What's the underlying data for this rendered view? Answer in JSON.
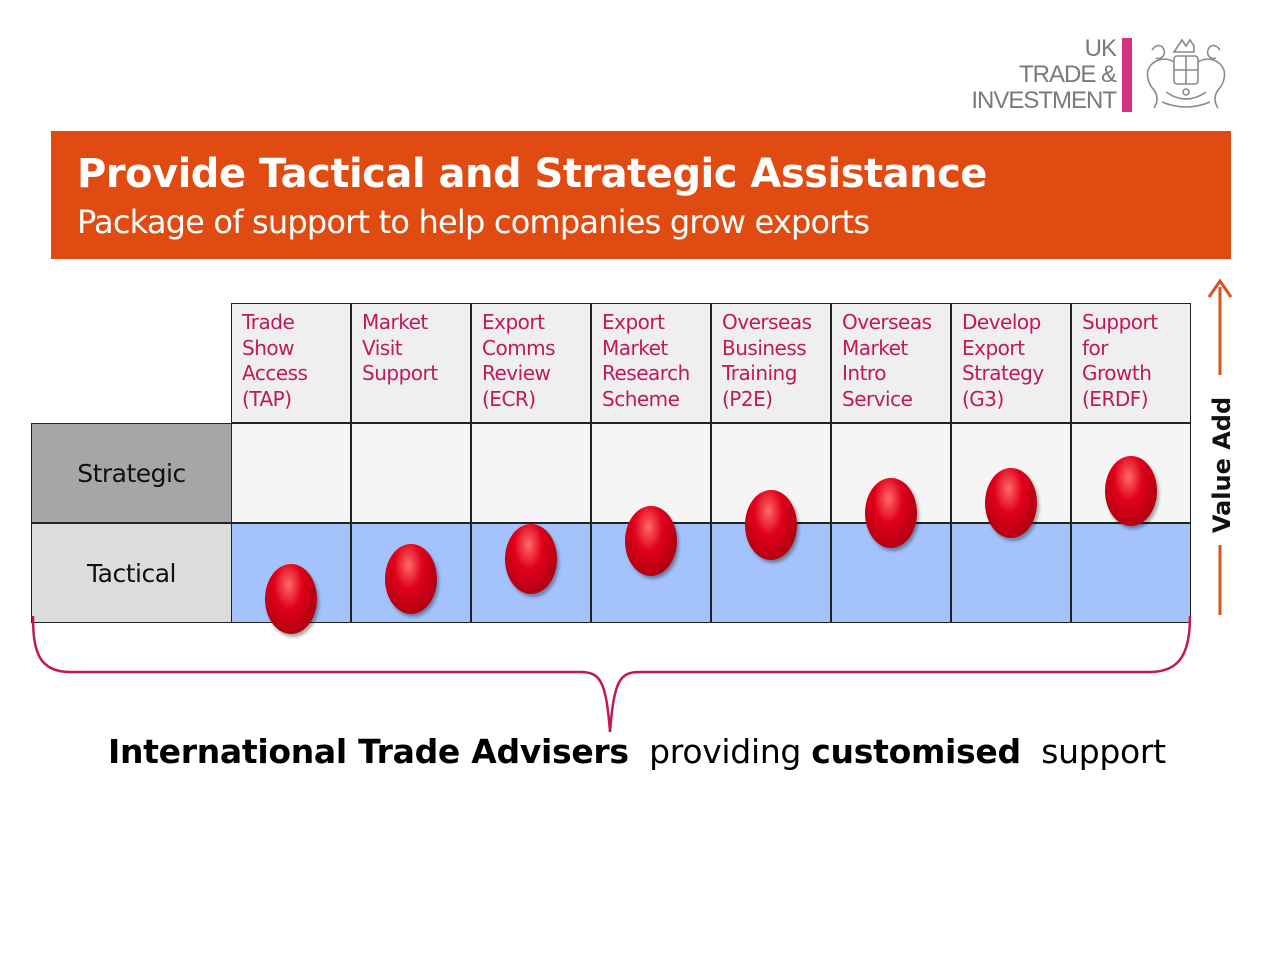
{
  "logo": {
    "line1": "UK",
    "line2": "TRADE &",
    "line3": "INVESTMENT"
  },
  "banner": {
    "title": "Provide Tactical and Strategic Assistance",
    "subtitle": "Package of support to help companies grow exports"
  },
  "columns": [
    {
      "lines": [
        "Trade",
        "Show",
        "Access",
        "(TAP)"
      ],
      "level": 0.12
    },
    {
      "lines": [
        "Market",
        "Visit",
        "Support"
      ],
      "level": 0.22
    },
    {
      "lines": [
        "Export",
        "Comms",
        "Review",
        "(ECR)"
      ],
      "level": 0.32
    },
    {
      "lines": [
        "Export",
        "Market",
        "Research",
        "Scheme"
      ],
      "level": 0.41
    },
    {
      "lines": [
        "Overseas",
        "Business",
        "Training",
        "(P2E)"
      ],
      "level": 0.49
    },
    {
      "lines": [
        "Overseas",
        "Market",
        "Intro",
        "Service"
      ],
      "level": 0.55
    },
    {
      "lines": [
        "Develop",
        "Export",
        "Strategy",
        "(G3)"
      ],
      "level": 0.6
    },
    {
      "lines": [
        "Support",
        "for",
        "Growth",
        "(ERDF)"
      ],
      "level": 0.66
    }
  ],
  "rows": {
    "strategic": "Strategic",
    "tactical": "Tactical"
  },
  "axis": {
    "label": "Value Add"
  },
  "footer": {
    "part1": "International Trade Advisers",
    "part2": "providing",
    "part3": "customised",
    "part4": "support"
  },
  "colors": {
    "banner": "#e04b12",
    "header_text": "#c2185b",
    "tactical": "#a4c2fb",
    "arrow": "#d9531e",
    "brace": "#c2185b",
    "dot": "#d0001a"
  }
}
